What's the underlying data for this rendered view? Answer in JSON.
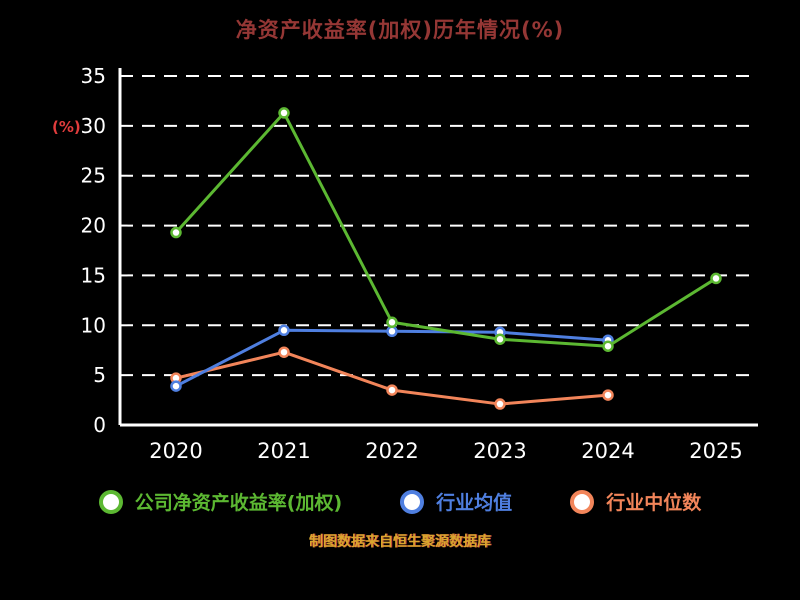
{
  "title": "净资产收益率(加权)历年情况(%)",
  "y_unit_label": "(%)",
  "footer": "制图数据来自恒生聚源数据库",
  "colors": {
    "background": "#000000",
    "title": "#953735",
    "y_unit_label": "#e03c3c",
    "axis": "#ffffff",
    "footer": "#d9a62e"
  },
  "chart_data": {
    "type": "line",
    "title": "净资产收益率(加权)历年情况(%)",
    "xlabel": "",
    "ylabel": "(%)",
    "x": [
      "2020",
      "2021",
      "2022",
      "2023",
      "2024",
      "2025"
    ],
    "ylim": [
      0,
      35
    ],
    "yticks": [
      0,
      5,
      10,
      15,
      20,
      25,
      30,
      35
    ],
    "grid": true,
    "grid_style": "dashed",
    "legend_position": "bottom",
    "series": [
      {
        "name": "公司净资产收益率(加权)",
        "color": "#5cb832",
        "values": [
          19.3,
          31.3,
          10.3,
          8.6,
          7.9,
          14.7
        ]
      },
      {
        "name": "行业均值",
        "color": "#4f7fe0",
        "values": [
          3.9,
          9.5,
          9.4,
          9.3,
          8.5,
          null
        ]
      },
      {
        "name": "行业中位数",
        "color": "#f2855a",
        "values": [
          4.7,
          7.3,
          3.5,
          2.1,
          3.0,
          null
        ]
      }
    ]
  }
}
